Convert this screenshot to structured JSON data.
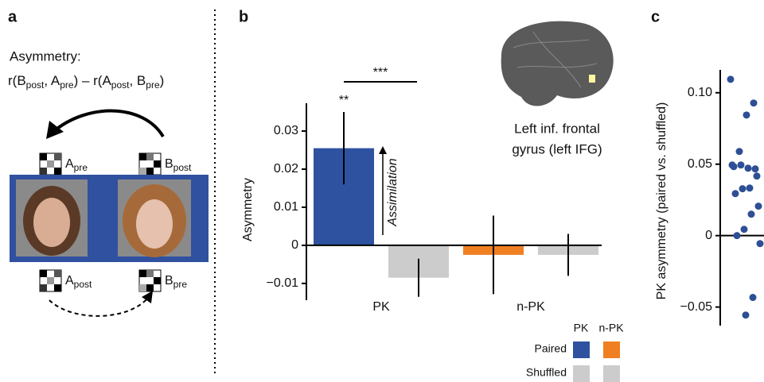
{
  "panel_a": {
    "letter": "a",
    "heading": "Asymmetry:",
    "formula": [
      "r(B",
      "post",
      ", A",
      "pre",
      ") – r(A",
      "post",
      ", B",
      "pre",
      ")"
    ],
    "labels": [
      [
        "A",
        "pre"
      ],
      [
        "B",
        "post"
      ],
      [
        "A",
        "post"
      ],
      [
        "B",
        "pre"
      ]
    ]
  },
  "chart_data": [
    {
      "type": "bar",
      "panel_label": "b",
      "y_label": "Asymmetry",
      "categories": [
        "PK",
        "n-PK"
      ],
      "series": [
        {
          "name": "Paired",
          "colors": [
            "#2f52a0",
            "#f07f22"
          ],
          "values": [
            0.0255,
            -0.0025
          ],
          "errors": [
            0.0095,
            0.0103
          ]
        },
        {
          "name": "Shuffled",
          "colors": [
            "#cccccc",
            "#cccccc"
          ],
          "values": [
            -0.0085,
            -0.0025
          ],
          "errors": [
            0.005,
            0.0055
          ]
        }
      ],
      "ylim": [
        -0.0144,
        0.0373
      ],
      "yticks": [
        {
          "value": -0.01,
          "label": "−0.01"
        },
        0,
        0.01,
        0.02,
        0.03
      ],
      "annotations": {
        "sig_pk": "**",
        "sig_between": "***",
        "arrow_label": "Assimilation",
        "region": [
          "Left inf. frontal",
          "gyrus (left IFG)"
        ]
      }
    },
    {
      "type": "strip",
      "panel_label": "c",
      "y_label": "PK asymmetry (paired vs. shuffled)",
      "color": "#2e4f96",
      "values": [
        0.1094,
        0.0928,
        0.0844,
        0.0589,
        0.0494,
        0.0467,
        0.0472,
        0.0494,
        0.0483,
        0.0417,
        0.0333,
        0.0328,
        0.0294,
        0.0206,
        0.015,
        0.0044,
        0,
        -0.0056,
        -0.0433,
        -0.0556
      ],
      "ylim": [
        -0.063,
        0.116
      ],
      "yticks": [
        {
          "value": 0.1,
          "label": "0.10"
        },
        0.05,
        0,
        {
          "value": -0.05,
          "label": "−0.05"
        }
      ]
    }
  ]
}
